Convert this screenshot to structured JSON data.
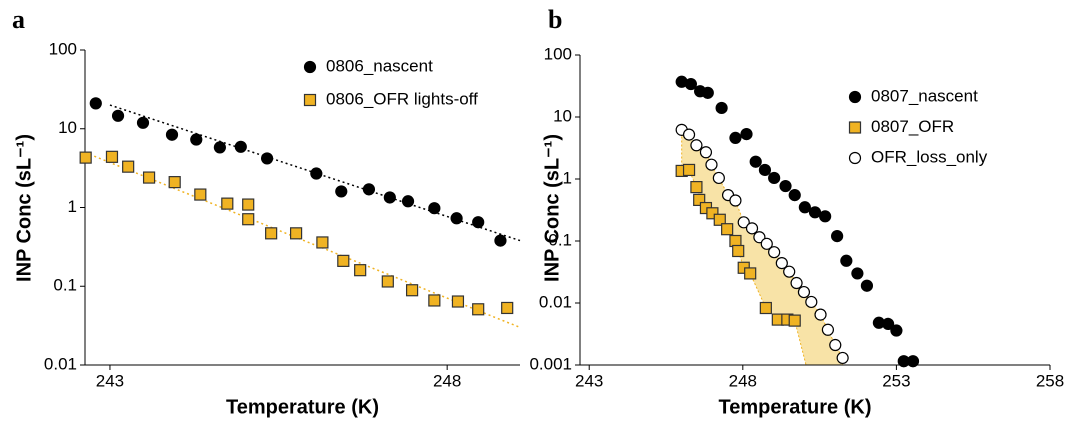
{
  "chart_data": [
    {
      "type": "scatter",
      "panel_label": "a",
      "xlabel": "Temperature (K)",
      "ylabel": "INP Conc (sL⁻¹)",
      "xlim": [
        242.63,
        249.08
      ],
      "xticks": [
        243,
        248
      ],
      "ylim": [
        0.01,
        100
      ],
      "yticks": [
        0.01,
        0.1,
        1,
        10,
        100
      ],
      "log_y": true,
      "legend": "top-right",
      "series": [
        {
          "name": "0806_nascent",
          "color": "#000000",
          "marker": "circle",
          "x": [
            242.79,
            243.12,
            243.49,
            243.92,
            244.28,
            244.63,
            244.94,
            245.33,
            246.06,
            246.43,
            246.84,
            247.15,
            247.42,
            247.81,
            248.14,
            248.46,
            248.79
          ],
          "values": [
            21,
            14.6,
            11.9,
            8.4,
            7.3,
            5.8,
            5.9,
            4.2,
            2.7,
            1.6,
            1.7,
            1.34,
            1.2,
            0.98,
            0.73,
            0.65,
            0.38
          ]
        },
        {
          "name": "0806_OFR lights-off",
          "color": "#f0b323",
          "marker": "square",
          "x": [
            242.64,
            243.03,
            243.27,
            243.58,
            243.96,
            244.34,
            244.74,
            245.05,
            245.05,
            245.39,
            245.76,
            246.15,
            246.46,
            246.71,
            247.12,
            247.48,
            247.81,
            248.16,
            248.46,
            248.89
          ],
          "values": [
            4.3,
            4.4,
            3.3,
            2.4,
            2.1,
            1.46,
            1.12,
            1.09,
            0.71,
            0.47,
            0.47,
            0.36,
            0.21,
            0.16,
            0.115,
            0.089,
            0.066,
            0.064,
            0.051,
            0.053
          ]
        }
      ],
      "trendlines": [
        {
          "color": "#000000",
          "x": [
            243,
            249.08
          ],
          "values": [
            20,
            0.38
          ]
        },
        {
          "color": "#f0b323",
          "x": [
            242.63,
            249.08
          ],
          "values": [
            5,
            0.03
          ]
        }
      ]
    },
    {
      "type": "scatter",
      "panel_label": "b",
      "xlabel": "Temperature (K)",
      "ylabel": "INP Conc (sL⁻¹)",
      "xlim": [
        242.7,
        258
      ],
      "xticks": [
        243,
        248,
        253,
        258
      ],
      "ylim": [
        0.001,
        100
      ],
      "yticks": [
        0.001,
        0.01,
        0.1,
        1,
        10,
        100
      ],
      "log_y": true,
      "legend": "top-right",
      "shade_color": "#f6d98a",
      "series": [
        {
          "name": "0807_nascent",
          "color": "#000000",
          "marker": "circle",
          "x": [
            246.01,
            246.31,
            246.61,
            246.86,
            247.31,
            247.76,
            248.12,
            248.42,
            248.72,
            249.02,
            249.39,
            249.69,
            250.02,
            250.35,
            250.68,
            251.07,
            251.37,
            251.73,
            252.04,
            252.43,
            252.73,
            253.0,
            253.24,
            253.54
          ],
          "values": [
            37,
            34,
            26,
            24.5,
            14,
            4.6,
            5.3,
            1.9,
            1.4,
            1.04,
            0.77,
            0.55,
            0.35,
            0.29,
            0.25,
            0.12,
            0.048,
            0.03,
            0.019,
            0.0048,
            0.0046,
            0.0036,
            0.00115,
            0.00115
          ]
        },
        {
          "name": "0807_OFR",
          "color": "#f0b323",
          "marker": "square",
          "x": [
            246.01,
            246.25,
            246.49,
            246.58,
            246.8,
            247.01,
            247.25,
            247.49,
            247.76,
            247.85,
            248.03,
            248.24,
            248.75,
            249.14,
            249.45,
            249.69
          ],
          "values": [
            1.35,
            1.4,
            0.74,
            0.46,
            0.34,
            0.28,
            0.22,
            0.155,
            0.1,
            0.069,
            0.037,
            0.03,
            0.0083,
            0.0054,
            0.0054,
            0.0052
          ]
        },
        {
          "name": "OFR_loss_only",
          "color": "#ffffff",
          "marker": "open-circle",
          "x": [
            246.01,
            246.25,
            246.49,
            246.8,
            246.98,
            247.22,
            247.52,
            247.76,
            248.03,
            248.3,
            248.54,
            248.78,
            249.02,
            249.27,
            249.51,
            249.75,
            249.99,
            250.23,
            250.53,
            250.77,
            251.01,
            251.25
          ],
          "values": [
            6.2,
            5.2,
            3.5,
            2.7,
            1.7,
            1.04,
            0.55,
            0.45,
            0.2,
            0.16,
            0.115,
            0.09,
            0.066,
            0.044,
            0.032,
            0.021,
            0.015,
            0.0104,
            0.0065,
            0.0037,
            0.0021,
            0.0013
          ]
        }
      ]
    }
  ]
}
